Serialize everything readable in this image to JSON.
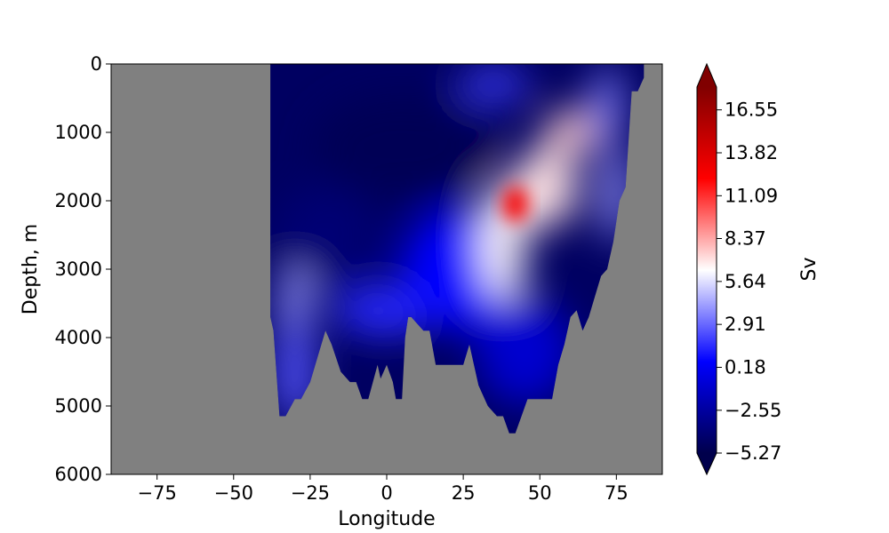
{
  "chart_data": {
    "type": "heatmap",
    "subtype": "filled-contour depth-longitude section",
    "xlabel": "Longitude",
    "ylabel": "Depth, m",
    "xlim": [
      -90,
      90
    ],
    "ylim": [
      6000,
      0
    ],
    "x_ticks": [
      -75,
      -50,
      -25,
      0,
      25,
      50,
      75
    ],
    "x_tick_labels": [
      "−75",
      "−50",
      "−25",
      "0",
      "25",
      "50",
      "75"
    ],
    "y_ticks": [
      0,
      1000,
      2000,
      3000,
      4000,
      5000,
      6000
    ],
    "y_tick_labels": [
      "0",
      "1000",
      "2000",
      "3000",
      "4000",
      "5000",
      "6000"
    ],
    "colorbar": {
      "label": "Sv",
      "colormap": "seismic",
      "extend": "both",
      "vmin": -5.27,
      "vmax": 18.0,
      "ticks": [
        -5.27,
        -2.55,
        0.18,
        2.91,
        5.64,
        8.37,
        11.09,
        13.82,
        16.55
      ],
      "tick_labels": [
        "−5.27",
        "−2.55",
        "0.18",
        "2.91",
        "5.64",
        "8.37",
        "11.09",
        "13.82",
        "16.55"
      ]
    },
    "mask_color": "#808080",
    "bathymetry": {
      "description": "bottom depth (m) by longitude; masked grey below; land/no-data west of -38",
      "lon": [
        -38,
        -37,
        -35,
        -33,
        -30,
        -28,
        -25,
        -22,
        -20,
        -18,
        -15,
        -12,
        -10,
        -8,
        -6,
        -3,
        -2,
        0,
        2,
        3,
        5,
        6,
        7,
        8,
        12,
        14,
        16,
        18,
        20,
        22,
        25,
        27,
        30,
        33,
        36,
        38,
        40,
        42,
        44,
        46,
        48,
        50,
        52,
        54,
        56,
        58,
        60,
        62,
        64,
        66,
        68,
        70,
        72,
        74,
        76,
        78,
        80,
        82,
        84
      ],
      "depth": [
        3700,
        3900,
        5150,
        5150,
        4900,
        4900,
        4650,
        4200,
        3900,
        4100,
        4500,
        4650,
        4650,
        4900,
        4900,
        4400,
        4600,
        4400,
        4650,
        4900,
        4900,
        4000,
        3700,
        3700,
        3900,
        3900,
        4400,
        4400,
        4400,
        4400,
        4400,
        4100,
        4700,
        5000,
        5150,
        5150,
        5400,
        5400,
        5150,
        4900,
        4900,
        4900,
        4900,
        4900,
        4400,
        4100,
        3700,
        3600,
        3900,
        3700,
        3400,
        3100,
        3000,
        2600,
        2000,
        1800,
        400,
        400,
        200
      ]
    },
    "field": {
      "description": "Sv values read from the contour colours (approximate)",
      "features": [
        {
          "lon": 5,
          "depth": 1200,
          "value": -5.0
        },
        {
          "lon": -20,
          "depth": 2500,
          "value": -4.0
        },
        {
          "lon": -30,
          "depth": 3500,
          "value": 4.0
        },
        {
          "lon": -30,
          "depth": 4500,
          "value": 2.5
        },
        {
          "lon": 0,
          "depth": 3600,
          "value": 1.5
        },
        {
          "lon": 25,
          "depth": 3000,
          "value": 0.5
        },
        {
          "lon": 35,
          "depth": 300,
          "value": 2.0
        },
        {
          "lon": 42,
          "depth": 2050,
          "value": 10.5
        },
        {
          "lon": 38,
          "depth": 2600,
          "value": 6.5
        },
        {
          "lon": 52,
          "depth": 1800,
          "value": 7.0
        },
        {
          "lon": 60,
          "depth": 1000,
          "value": 7.5
        },
        {
          "lon": 75,
          "depth": 1900,
          "value": 4.0
        },
        {
          "lon": 72,
          "depth": 600,
          "value": 3.5
        },
        {
          "lon": 45,
          "depth": 4200,
          "value": -1.0
        }
      ]
    }
  }
}
